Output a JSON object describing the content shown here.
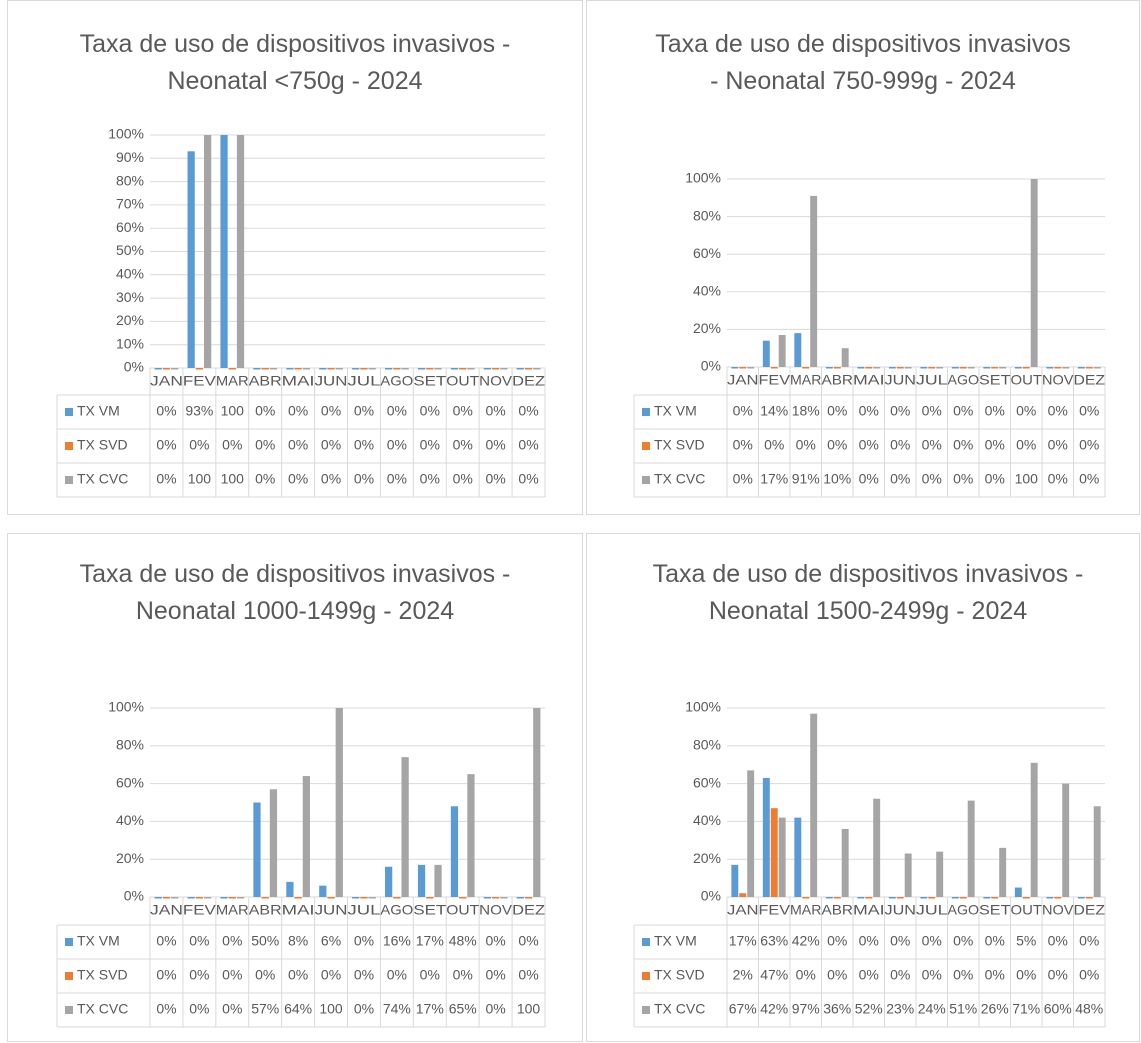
{
  "chart_data": [
    {
      "type": "bar",
      "title": "Taxa de uso de dispositivos invasivos - Neonatal <750g - 2024",
      "categories": [
        "JAN",
        "FEV",
        "MAR",
        "ABR",
        "MAI",
        "JUN",
        "JUL",
        "AGO",
        "SET",
        "OUT",
        "NOV",
        "DEZ"
      ],
      "series": [
        {
          "name": "TX VM",
          "color": "#5b9bd5",
          "values": [
            0,
            93,
            100,
            0,
            0,
            0,
            0,
            0,
            0,
            0,
            0,
            0
          ],
          "value_labels": [
            "0%",
            "93%",
            "100",
            "0%",
            "0%",
            "0%",
            "0%",
            "0%",
            "0%",
            "0%",
            "0%",
            "0%"
          ]
        },
        {
          "name": "TX SVD",
          "color": "#ed7d31",
          "values": [
            0,
            0,
            0,
            0,
            0,
            0,
            0,
            0,
            0,
            0,
            0,
            0
          ],
          "value_labels": [
            "0%",
            "0%",
            "0%",
            "0%",
            "0%",
            "0%",
            "0%",
            "0%",
            "0%",
            "0%",
            "0%",
            "0%"
          ]
        },
        {
          "name": "TX CVC",
          "color": "#a5a5a5",
          "values": [
            0,
            100,
            100,
            0,
            0,
            0,
            0,
            0,
            0,
            0,
            0,
            0
          ],
          "value_labels": [
            "0%",
            "100",
            "100",
            "0%",
            "0%",
            "0%",
            "0%",
            "0%",
            "0%",
            "0%",
            "0%",
            "0%"
          ]
        }
      ],
      "ylim": [
        0,
        100
      ],
      "yticks": [
        {
          "value": 0,
          "label": "0%"
        },
        {
          "value": 10,
          "label": "10%"
        },
        {
          "value": 20,
          "label": "20%"
        },
        {
          "value": 30,
          "label": "30%"
        },
        {
          "value": 40,
          "label": "40%"
        },
        {
          "value": 50,
          "label": "50%"
        },
        {
          "value": 60,
          "label": "60%"
        },
        {
          "value": 70,
          "label": "70%"
        },
        {
          "value": 80,
          "label": "80%"
        },
        {
          "value": 90,
          "label": "90%"
        },
        {
          "value": 100,
          "label": "100%"
        }
      ],
      "grid": true
    },
    {
      "type": "bar",
      "title": "Taxa de uso de dispositivos invasivos - Neonatal 750-999g - 2024",
      "categories": [
        "JAN",
        "FEV",
        "MAR",
        "ABR",
        "MAI",
        "JUN",
        "JUL",
        "AGO",
        "SET",
        "OUT",
        "NOV",
        "DEZ"
      ],
      "series": [
        {
          "name": "TX VM",
          "color": "#5b9bd5",
          "values": [
            0,
            14,
            18,
            0,
            0,
            0,
            0,
            0,
            0,
            0,
            0,
            0
          ],
          "value_labels": [
            "0%",
            "14%",
            "18%",
            "0%",
            "0%",
            "0%",
            "0%",
            "0%",
            "0%",
            "0%",
            "0%",
            "0%"
          ]
        },
        {
          "name": "TX SVD",
          "color": "#ed7d31",
          "values": [
            0,
            0,
            0,
            0,
            0,
            0,
            0,
            0,
            0,
            0,
            0,
            0
          ],
          "value_labels": [
            "0%",
            "0%",
            "0%",
            "0%",
            "0%",
            "0%",
            "0%",
            "0%",
            "0%",
            "0%",
            "0%",
            "0%"
          ]
        },
        {
          "name": "TX CVC",
          "color": "#a5a5a5",
          "values": [
            0,
            17,
            91,
            10,
            0,
            0,
            0,
            0,
            0,
            100,
            0,
            0
          ],
          "value_labels": [
            "0%",
            "17%",
            "91%",
            "10%",
            "0%",
            "0%",
            "0%",
            "0%",
            "0%",
            "100",
            "0%",
            "0%"
          ]
        }
      ],
      "ylim": [
        0,
        100
      ],
      "yticks": [
        {
          "value": 0,
          "label": "0%"
        },
        {
          "value": 20,
          "label": "20%"
        },
        {
          "value": 40,
          "label": "40%"
        },
        {
          "value": 60,
          "label": "60%"
        },
        {
          "value": 80,
          "label": "80%"
        },
        {
          "value": 100,
          "label": "100%"
        }
      ],
      "grid": true
    },
    {
      "type": "bar",
      "title": "Taxa de uso de dispositivos invasivos - Neonatal 1000-1499g - 2024",
      "categories": [
        "JAN",
        "FEV",
        "MAR",
        "ABR",
        "MAI",
        "JUN",
        "JUL",
        "AGO",
        "SET",
        "OUT",
        "NOV",
        "DEZ"
      ],
      "series": [
        {
          "name": "TX VM",
          "color": "#5b9bd5",
          "values": [
            0,
            0,
            0,
            50,
            8,
            6,
            0,
            16,
            17,
            48,
            0,
            0
          ],
          "value_labels": [
            "0%",
            "0%",
            "0%",
            "50%",
            "8%",
            "6%",
            "0%",
            "16%",
            "17%",
            "48%",
            "0%",
            "0%"
          ]
        },
        {
          "name": "TX SVD",
          "color": "#ed7d31",
          "values": [
            0,
            0,
            0,
            0,
            0,
            0,
            0,
            0,
            0,
            0,
            0,
            0
          ],
          "value_labels": [
            "0%",
            "0%",
            "0%",
            "0%",
            "0%",
            "0%",
            "0%",
            "0%",
            "0%",
            "0%",
            "0%",
            "0%"
          ]
        },
        {
          "name": "TX CVC",
          "color": "#a5a5a5",
          "values": [
            0,
            0,
            0,
            57,
            64,
            100,
            0,
            74,
            17,
            65,
            0,
            100
          ],
          "value_labels": [
            "0%",
            "0%",
            "0%",
            "57%",
            "64%",
            "100",
            "0%",
            "74%",
            "17%",
            "65%",
            "0%",
            "100"
          ]
        }
      ],
      "ylim": [
        0,
        100
      ],
      "yticks": [
        {
          "value": 0,
          "label": "0%"
        },
        {
          "value": 20,
          "label": "20%"
        },
        {
          "value": 40,
          "label": "40%"
        },
        {
          "value": 60,
          "label": "60%"
        },
        {
          "value": 80,
          "label": "80%"
        },
        {
          "value": 100,
          "label": "100%"
        }
      ],
      "grid": true
    },
    {
      "type": "bar",
      "title": "Taxa de uso de dispositivos invasivos - Neonatal 1500-2499g - 2024",
      "categories": [
        "JAN",
        "FEV",
        "MAR",
        "ABR",
        "MAI",
        "JUN",
        "JUL",
        "AGO",
        "SET",
        "OUT",
        "NOV",
        "DEZ"
      ],
      "series": [
        {
          "name": "TX VM",
          "color": "#5b9bd5",
          "values": [
            17,
            63,
            42,
            0,
            0,
            0,
            0,
            0,
            0,
            5,
            0,
            0
          ],
          "value_labels": [
            "17%",
            "63%",
            "42%",
            "0%",
            "0%",
            "0%",
            "0%",
            "0%",
            "0%",
            "5%",
            "0%",
            "0%"
          ]
        },
        {
          "name": "TX SVD",
          "color": "#ed7d31",
          "values": [
            2,
            47,
            0,
            0,
            0,
            0,
            0,
            0,
            0,
            0,
            0,
            0
          ],
          "value_labels": [
            "2%",
            "47%",
            "0%",
            "0%",
            "0%",
            "0%",
            "0%",
            "0%",
            "0%",
            "0%",
            "0%",
            "0%"
          ]
        },
        {
          "name": "TX CVC",
          "color": "#a5a5a5",
          "values": [
            67,
            42,
            97,
            36,
            52,
            23,
            24,
            51,
            26,
            71,
            60,
            48
          ],
          "value_labels": [
            "67%",
            "42%",
            "97%",
            "36%",
            "52%",
            "23%",
            "24%",
            "51%",
            "26%",
            "71%",
            "60%",
            "48%"
          ]
        }
      ],
      "ylim": [
        0,
        100
      ],
      "yticks": [
        {
          "value": 0,
          "label": "0%"
        },
        {
          "value": 20,
          "label": "20%"
        },
        {
          "value": 40,
          "label": "40%"
        },
        {
          "value": 60,
          "label": "60%"
        },
        {
          "value": 80,
          "label": "80%"
        },
        {
          "value": 100,
          "label": "100%"
        }
      ],
      "grid": true
    }
  ]
}
